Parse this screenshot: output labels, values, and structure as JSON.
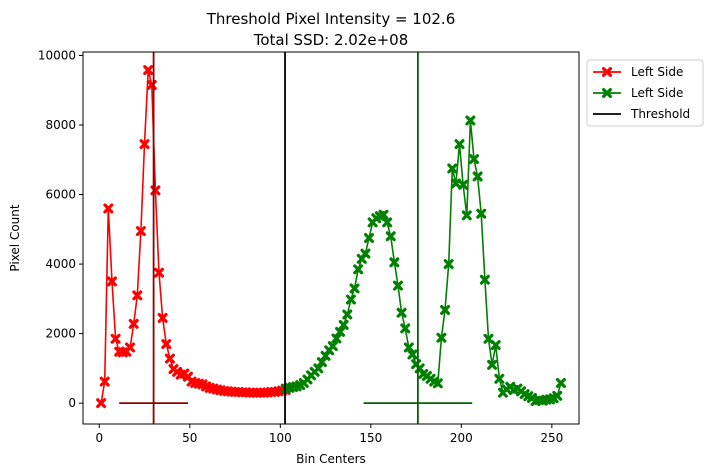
{
  "chart_data": {
    "type": "line",
    "title": "Threshold Pixel Intensity = 102.6",
    "subtitle": "Total SSD: 2.02e+08",
    "xlabel": "Bin Centers",
    "ylabel": "Pixel Count",
    "xlim": [
      -9,
      265
    ],
    "ylim": [
      -600,
      10100
    ],
    "xticks": [
      0,
      50,
      100,
      150,
      200,
      250
    ],
    "yticks": [
      0,
      2000,
      4000,
      6000,
      8000,
      10000
    ],
    "grid": false,
    "legend_position": "outside top-right",
    "colors": {
      "left": "#ff0000",
      "right": "#008000",
      "threshold": "#000000",
      "left_mean": "#8b0000",
      "right_mean": "#006400"
    },
    "series": [
      {
        "name": "Left Side",
        "color": "#ff0000",
        "marker": "X",
        "x": [
          1,
          3,
          5,
          7,
          9,
          11,
          13,
          15,
          17,
          19,
          21,
          23,
          25,
          27,
          29,
          31,
          33,
          35,
          37,
          39,
          41,
          43,
          45,
          47,
          49,
          51,
          53,
          55,
          57,
          59,
          61,
          63,
          65,
          67,
          69,
          71,
          73,
          75,
          77,
          79,
          81,
          83,
          85,
          87,
          89,
          91,
          93,
          95,
          97,
          99,
          101,
          103
        ],
        "y": [
          0,
          620,
          5600,
          3500,
          1850,
          1480,
          1460,
          1480,
          1600,
          2280,
          3100,
          4950,
          7450,
          9580,
          9150,
          6120,
          3750,
          2450,
          1700,
          1280,
          980,
          900,
          820,
          850,
          760,
          620,
          580,
          560,
          540,
          480,
          440,
          420,
          390,
          370,
          350,
          340,
          330,
          320,
          320,
          310,
          310,
          300,
          300,
          300,
          300,
          300,
          310,
          320,
          320,
          340,
          360,
          380
        ]
      },
      {
        "name": "Left Side",
        "color": "#008000",
        "marker": "X",
        "x": [
          103,
          105,
          107,
          109,
          111,
          113,
          115,
          117,
          119,
          121,
          123,
          125,
          127,
          129,
          131,
          133,
          135,
          137,
          139,
          141,
          143,
          145,
          147,
          149,
          151,
          153,
          155,
          157,
          159,
          161,
          163,
          165,
          167,
          169,
          171,
          173,
          175,
          177,
          179,
          181,
          183,
          185,
          187,
          189,
          191,
          193,
          195,
          197,
          199,
          201,
          203,
          205,
          207,
          209,
          211,
          213,
          215,
          217,
          219,
          221,
          223,
          225,
          227,
          229,
          231,
          233,
          235,
          237,
          239,
          241,
          243,
          245,
          247,
          249,
          251,
          253,
          255
        ],
        "y": [
          420,
          440,
          460,
          480,
          520,
          580,
          680,
          800,
          900,
          1000,
          1180,
          1360,
          1520,
          1640,
          1860,
          2050,
          2250,
          2550,
          2980,
          3300,
          3850,
          4150,
          4300,
          4750,
          5200,
          5320,
          5380,
          5420,
          5200,
          4800,
          4050,
          3380,
          2600,
          2150,
          1600,
          1400,
          1120,
          1000,
          840,
          780,
          700,
          620,
          570,
          1880,
          2680,
          4000,
          6750,
          6320,
          7450,
          6280,
          5400,
          8130,
          7020,
          6520,
          5450,
          3550,
          1850,
          1100,
          1670,
          700,
          300,
          400,
          470,
          380,
          420,
          340,
          260,
          200,
          150,
          60,
          90,
          70,
          100,
          110,
          140,
          210,
          580
        ]
      }
    ],
    "vertical_lines": [
      {
        "name": "Threshold",
        "x": 102.6,
        "color": "#000000"
      },
      {
        "name": "left-mean",
        "x": 30,
        "color": "#8b0000"
      },
      {
        "name": "right-mean",
        "x": 176,
        "color": "#006400"
      }
    ],
    "horizontal_segments": [
      {
        "name": "left-span",
        "y": 0,
        "x_start": 11,
        "x_end": 49,
        "color": "#8b0000"
      },
      {
        "name": "right-span",
        "y": 0,
        "x_start": 146,
        "x_end": 206,
        "color": "#006400"
      }
    ],
    "legend": [
      {
        "label": "Left Side",
        "color": "#ff0000",
        "marker": true
      },
      {
        "label": "Left Side",
        "color": "#008000",
        "marker": true
      },
      {
        "label": "Threshold",
        "color": "#000000",
        "marker": false
      }
    ]
  }
}
